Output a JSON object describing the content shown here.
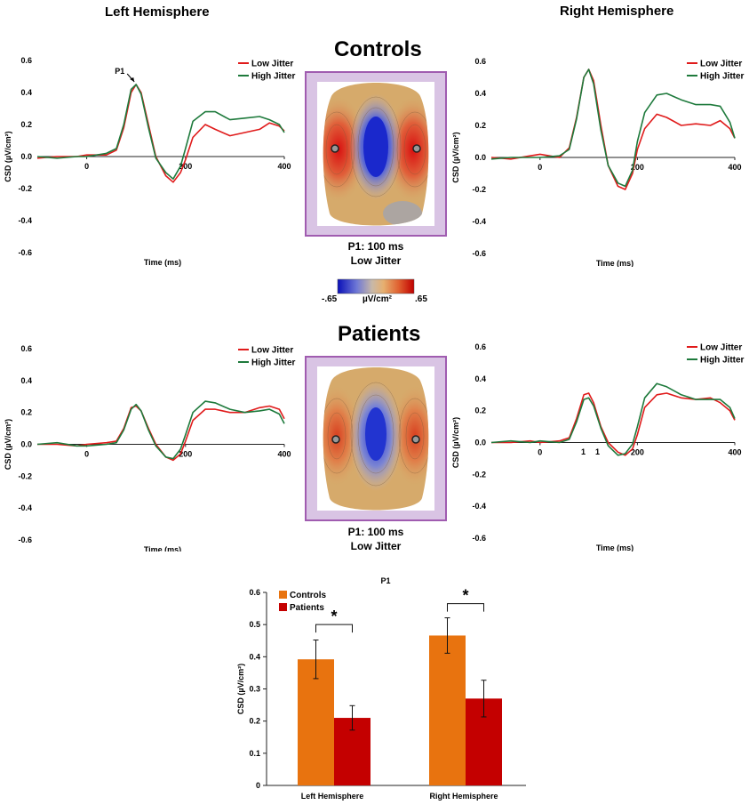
{
  "titles": {
    "left_hemisphere": "Left Hemisphere",
    "right_hemisphere": "Right Hemisphere",
    "controls": "Controls",
    "patients": "Patients"
  },
  "topomaps": {
    "controls_caption_line1": "P1: 100 ms",
    "controls_caption_line2": "Low Jitter",
    "patients_caption_line1": "P1: 100 ms",
    "patients_caption_line2": "Low Jitter"
  },
  "colorbar": {
    "min_label": "-.65",
    "unit_label": "µV/cm²",
    "max_label": ".65"
  },
  "stray_labels": {
    "one_a": "1",
    "one_b": "1"
  },
  "colors": {
    "low": "#e01b1b",
    "high": "#1e7a3c",
    "controls_bar": "#e8730f",
    "patients_bar": "#c40000",
    "frame": "#a05cb0",
    "frame_fill": "#d9c4e4"
  },
  "chart_data": [
    {
      "id": "ctrl_left",
      "type": "line",
      "ylabel": "CSD (µV/cm²)",
      "xlabel": "Time (ms)",
      "xlim": [
        -100,
        400
      ],
      "ylim": [
        -0.6,
        0.6
      ],
      "x_ticks": [
        0,
        200,
        400
      ],
      "y_ticks": [
        -0.6,
        -0.4,
        -0.2,
        0.0,
        0.2,
        0.4,
        0.6
      ],
      "y_tick_labels": [
        "-0.6",
        "-0.4",
        "-0.2",
        "0.0",
        "0.2",
        "0.4",
        "0.6"
      ],
      "annotation": "P1",
      "legend": [
        "Low Jitter",
        "High Jitter"
      ],
      "series": [
        {
          "name": "Low Jitter",
          "x": [
            -100,
            -60,
            -20,
            0,
            40,
            60,
            75,
            90,
            100,
            110,
            125,
            140,
            160,
            175,
            190,
            200,
            215,
            240,
            260,
            290,
            320,
            350,
            370,
            390,
            400
          ],
          "y": [
            -0.01,
            0.0,
            0.0,
            0.01,
            0.01,
            0.04,
            0.18,
            0.4,
            0.45,
            0.4,
            0.2,
            0.0,
            -0.12,
            -0.16,
            -0.1,
            -0.02,
            0.12,
            0.2,
            0.17,
            0.13,
            0.15,
            0.17,
            0.21,
            0.19,
            0.16
          ]
        },
        {
          "name": "High Jitter",
          "x": [
            -100,
            -60,
            -20,
            0,
            40,
            60,
            75,
            90,
            100,
            110,
            125,
            140,
            160,
            175,
            190,
            200,
            215,
            240,
            260,
            290,
            320,
            350,
            370,
            390,
            400
          ],
          "y": [
            0.0,
            -0.01,
            0.0,
            0.0,
            0.02,
            0.05,
            0.2,
            0.42,
            0.45,
            0.39,
            0.18,
            -0.01,
            -0.1,
            -0.14,
            -0.06,
            0.05,
            0.22,
            0.28,
            0.28,
            0.23,
            0.24,
            0.25,
            0.23,
            0.2,
            0.15
          ]
        }
      ]
    },
    {
      "id": "ctrl_right",
      "type": "line",
      "ylabel": "CSD (µV/cm²)",
      "xlabel": "Time (ms)",
      "xlim": [
        -100,
        400
      ],
      "ylim": [
        -0.6,
        0.6
      ],
      "x_ticks": [
        0,
        200,
        400
      ],
      "y_ticks": [
        -0.6,
        -0.4,
        -0.2,
        0.0,
        0.2,
        0.4,
        0.6
      ],
      "y_tick_labels": [
        "-0.6",
        "-0.4",
        "-0.2",
        "0.0",
        "0.2",
        "0.4",
        "0.6"
      ],
      "legend": [
        "Low Jitter",
        "High Jitter"
      ],
      "series": [
        {
          "name": "Low Jitter",
          "x": [
            -100,
            -60,
            -20,
            0,
            40,
            60,
            75,
            90,
            100,
            110,
            125,
            140,
            160,
            175,
            190,
            200,
            215,
            240,
            260,
            290,
            320,
            350,
            370,
            390,
            400
          ],
          "y": [
            0.0,
            -0.01,
            0.01,
            0.02,
            0.0,
            0.06,
            0.25,
            0.5,
            0.55,
            0.48,
            0.2,
            -0.05,
            -0.18,
            -0.2,
            -0.1,
            0.05,
            0.18,
            0.27,
            0.25,
            0.2,
            0.21,
            0.2,
            0.23,
            0.18,
            0.12
          ]
        },
        {
          "name": "High Jitter",
          "x": [
            -100,
            -60,
            -20,
            0,
            40,
            60,
            75,
            90,
            100,
            110,
            125,
            140,
            160,
            175,
            190,
            200,
            215,
            240,
            260,
            290,
            320,
            350,
            370,
            390,
            400
          ],
          "y": [
            -0.01,
            0.0,
            0.0,
            0.0,
            0.01,
            0.05,
            0.24,
            0.5,
            0.55,
            0.46,
            0.17,
            -0.05,
            -0.16,
            -0.18,
            -0.08,
            0.1,
            0.28,
            0.39,
            0.4,
            0.36,
            0.33,
            0.33,
            0.32,
            0.22,
            0.12
          ]
        }
      ]
    },
    {
      "id": "pat_left",
      "type": "line",
      "ylabel": "CSD (µV/cm²)",
      "xlabel": "Time (ms)",
      "xlim": [
        -100,
        400
      ],
      "ylim": [
        -0.6,
        0.6
      ],
      "x_ticks": [
        0,
        200,
        400
      ],
      "y_ticks": [
        -0.6,
        -0.4,
        -0.2,
        0.0,
        0.2,
        0.4,
        0.6
      ],
      "y_tick_labels": [
        "-0.6",
        "-0.4",
        "-0.2",
        "0.0",
        "0.2",
        "0.4",
        "0.6"
      ],
      "legend": [
        "Low Jitter",
        "High Jitter"
      ],
      "series": [
        {
          "name": "Low Jitter",
          "x": [
            -100,
            -60,
            -20,
            0,
            40,
            60,
            75,
            90,
            100,
            110,
            125,
            140,
            160,
            175,
            190,
            200,
            215,
            240,
            260,
            290,
            320,
            350,
            370,
            390,
            400
          ],
          "y": [
            0.0,
            0.0,
            -0.01,
            0.0,
            0.01,
            0.02,
            0.1,
            0.23,
            0.24,
            0.21,
            0.1,
            0.0,
            -0.08,
            -0.1,
            -0.06,
            0.02,
            0.15,
            0.22,
            0.22,
            0.2,
            0.2,
            0.23,
            0.24,
            0.22,
            0.16
          ]
        },
        {
          "name": "High Jitter",
          "x": [
            -100,
            -60,
            -20,
            0,
            40,
            60,
            75,
            90,
            100,
            110,
            125,
            140,
            160,
            175,
            190,
            200,
            215,
            240,
            260,
            290,
            320,
            350,
            370,
            390,
            400
          ],
          "y": [
            0.0,
            0.01,
            -0.01,
            -0.01,
            0.0,
            0.01,
            0.09,
            0.22,
            0.25,
            0.21,
            0.09,
            -0.01,
            -0.08,
            -0.09,
            -0.03,
            0.06,
            0.2,
            0.27,
            0.26,
            0.22,
            0.2,
            0.21,
            0.22,
            0.19,
            0.13
          ]
        }
      ]
    },
    {
      "id": "pat_right",
      "type": "line",
      "ylabel": "CSD (µV/cm²)",
      "xlabel": "Time (ms)",
      "xlim": [
        -100,
        400
      ],
      "ylim": [
        -0.6,
        0.6
      ],
      "x_ticks": [
        0,
        200,
        400
      ],
      "y_ticks": [
        -0.6,
        -0.4,
        -0.2,
        0.0,
        0.2,
        0.4,
        0.6
      ],
      "y_tick_labels": [
        "-0.6",
        "-0.4",
        "-0.2",
        "0.0",
        "0.2",
        "0.4",
        "0.6"
      ],
      "legend": [
        "Low Jitter",
        "High Jitter"
      ],
      "series": [
        {
          "name": "Low Jitter",
          "x": [
            -100,
            -60,
            -20,
            0,
            40,
            60,
            75,
            90,
            100,
            110,
            125,
            140,
            160,
            175,
            190,
            200,
            215,
            240,
            260,
            290,
            320,
            350,
            370,
            390,
            400
          ],
          "y": [
            0.0,
            0.0,
            0.01,
            0.0,
            0.01,
            0.03,
            0.15,
            0.3,
            0.31,
            0.25,
            0.1,
            0.0,
            -0.06,
            -0.08,
            -0.04,
            0.05,
            0.22,
            0.3,
            0.31,
            0.28,
            0.27,
            0.28,
            0.25,
            0.2,
            0.14
          ]
        },
        {
          "name": "High Jitter",
          "x": [
            -100,
            -60,
            -20,
            0,
            40,
            60,
            75,
            90,
            100,
            110,
            125,
            140,
            160,
            175,
            190,
            200,
            215,
            240,
            260,
            290,
            320,
            350,
            370,
            390,
            400
          ],
          "y": [
            0.0,
            0.01,
            0.0,
            0.01,
            0.0,
            0.02,
            0.13,
            0.27,
            0.28,
            0.23,
            0.09,
            -0.02,
            -0.08,
            -0.07,
            -0.01,
            0.1,
            0.28,
            0.37,
            0.35,
            0.3,
            0.27,
            0.27,
            0.27,
            0.22,
            0.15
          ]
        }
      ]
    },
    {
      "id": "p1_bar",
      "type": "bar",
      "title": "P1",
      "ylabel": "CSD (µV/cm²)",
      "ylim": [
        0,
        0.6
      ],
      "y_ticks": [
        0,
        0.1,
        0.2,
        0.3,
        0.4,
        0.5,
        0.6
      ],
      "y_tick_labels": [
        "0",
        "0.1",
        "0.2",
        "0.3",
        "0.4",
        "0.5",
        "0.6"
      ],
      "categories": [
        "Left Hemisphere",
        "Right Hemisphere"
      ],
      "legend": [
        "Controls",
        "Patients"
      ],
      "significance": [
        "*",
        "*"
      ],
      "series": [
        {
          "name": "Controls",
          "values": [
            0.392,
            0.466
          ],
          "errors": [
            0.06,
            0.055
          ]
        },
        {
          "name": "Patients",
          "values": [
            0.21,
            0.27
          ],
          "errors": [
            0.038,
            0.057
          ]
        }
      ]
    }
  ]
}
